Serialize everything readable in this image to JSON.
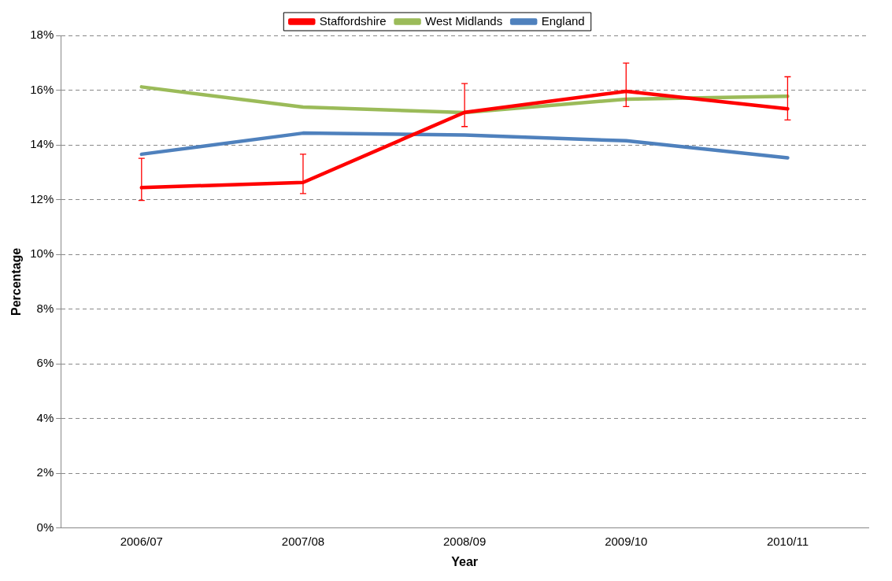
{
  "chart_data": {
    "type": "line",
    "xlabel": "Year",
    "ylabel": "Percentage",
    "categories": [
      "2006/07",
      "2007/08",
      "2008/09",
      "2009/10",
      "2010/11"
    ],
    "series": [
      {
        "name": "Staffordshire",
        "color": "#ff0000",
        "values": [
          12.44,
          12.63,
          15.19,
          15.96,
          15.32
        ],
        "errors": [
          [
            11.97,
            13.51
          ],
          [
            12.22,
            13.66
          ],
          [
            14.67,
            16.24
          ],
          [
            15.4,
            16.99
          ],
          [
            14.91,
            16.49
          ]
        ]
      },
      {
        "name": "West Midlands",
        "color": "#9bbb59",
        "values": [
          16.12,
          15.38,
          15.18,
          15.67,
          15.78
        ]
      },
      {
        "name": "England",
        "color": "#4f81bd",
        "values": [
          13.66,
          14.43,
          14.36,
          14.15,
          13.53
        ]
      }
    ],
    "ylim": [
      0,
      18
    ],
    "yticks": [
      {
        "value": 0,
        "label": "0%"
      },
      {
        "value": 2,
        "label": "2%"
      },
      {
        "value": 4,
        "label": "4%"
      },
      {
        "value": 6,
        "label": "6%"
      },
      {
        "value": 8,
        "label": "8%"
      },
      {
        "value": 10,
        "label": "10%"
      },
      {
        "value": 12,
        "label": "12%"
      },
      {
        "value": 14,
        "label": "14%"
      },
      {
        "value": 16,
        "label": "16%"
      },
      {
        "value": 18,
        "label": "18%"
      }
    ],
    "grid": "y",
    "legend": "top",
    "marker": "none",
    "line_style": "solid"
  }
}
